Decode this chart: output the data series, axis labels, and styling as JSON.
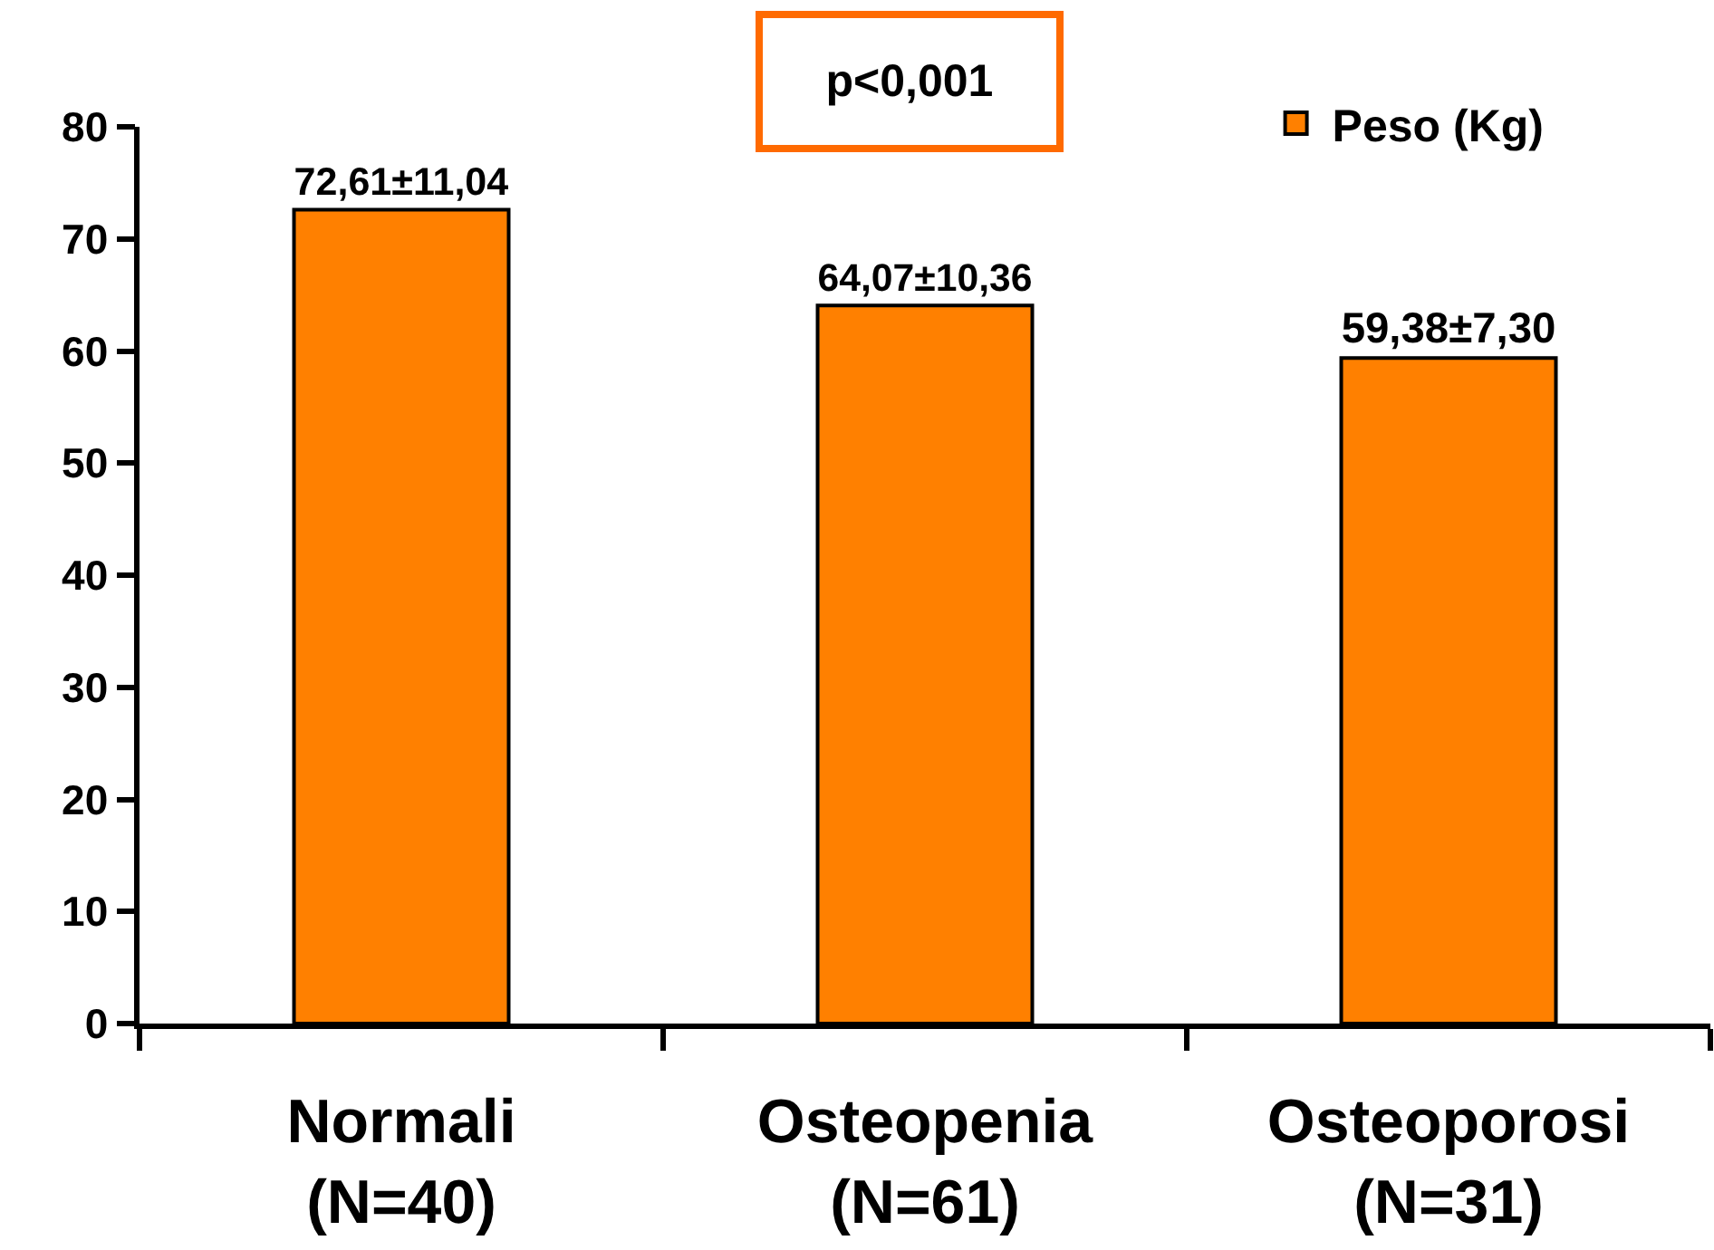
{
  "chart_data": {
    "type": "bar",
    "categories": [
      "Normali\n(N=40)",
      "Osteopenia\n(N=61)",
      "Osteoporosi\n(N=31)"
    ],
    "series": [
      {
        "name": "Peso (Kg)",
        "color": "#ff8000",
        "values": [
          72.61,
          64.07,
          59.38
        ],
        "value_labels": [
          "72,61±11,04",
          "64,07±10,36",
          "59,38±7,30"
        ]
      }
    ],
    "ylim": [
      0,
      80
    ],
    "yticks": [
      0,
      10,
      20,
      30,
      40,
      50,
      60,
      70,
      80
    ],
    "legend": "top right",
    "annotations": [
      "p<0,001"
    ]
  }
}
